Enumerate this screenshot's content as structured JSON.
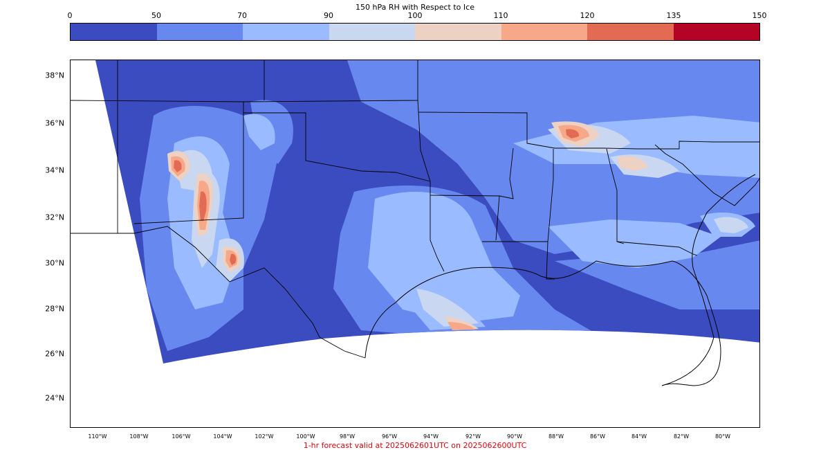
{
  "colorbar": {
    "title": "150 hPa RH with Respect to Ice",
    "ticks": [
      "0",
      "50",
      "70",
      "90",
      "100",
      "110",
      "120",
      "135",
      "150"
    ],
    "colors": [
      "#3a4cc0",
      "#6788ee",
      "#9abbff",
      "#c9d7f0",
      "#edd1c2",
      "#f7a889",
      "#e36a53",
      "#b40426"
    ]
  },
  "map": {
    "lat_labels": [
      "38°N",
      "36°N",
      "34°N",
      "32°N",
      "30°N",
      "28°N",
      "26°N",
      "24°N"
    ],
    "lon_labels": [
      "110°W",
      "108°W",
      "106°W",
      "104°W",
      "102°W",
      "100°W",
      "98°W",
      "96°W",
      "94°W",
      "92°W",
      "90°W",
      "88°W",
      "86°W",
      "84°W",
      "82°W",
      "80°W"
    ]
  },
  "footer": {
    "text": "1-hr forecast valid at 2025062601UTC on 2025062600UTC"
  }
}
